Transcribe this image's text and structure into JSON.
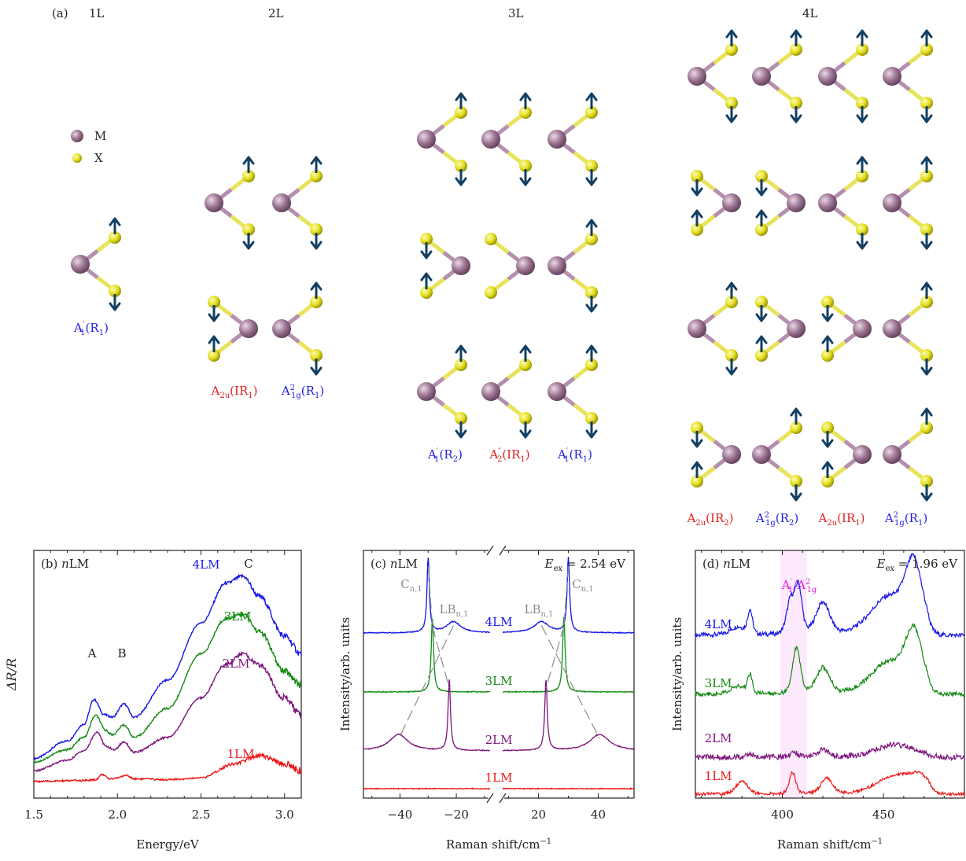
{
  "panel_a": {
    "label": "(a)",
    "layer_titles": [
      "1L",
      "2L",
      "3L",
      "4L"
    ],
    "legend": [
      {
        "symbol": "metal-atom",
        "label": "M"
      },
      {
        "symbol": "chalcogen-atom",
        "label": "X"
      }
    ],
    "mode_labels": {
      "1L": [
        {
          "main": "A",
          "sup": "′",
          "sub": "1",
          "rest": "(R",
          "rsub": "1",
          "end": ")",
          "color": "#1f1fe0"
        }
      ],
      "2L": [
        {
          "main": "A",
          "sup": "",
          "sub": "2u",
          "rest": "(IR",
          "rsub": "1",
          "end": ")",
          "color": "#e01f1f"
        },
        {
          "main": "A",
          "sup": "2",
          "sub": "1g",
          "rest": "(R",
          "rsub": "1",
          "end": ")",
          "color": "#1f1fe0"
        }
      ],
      "3L": [
        {
          "main": "A",
          "sup": "′",
          "sub": "1",
          "rest": "(R",
          "rsub": "2",
          "end": ")",
          "color": "#1f1fe0"
        },
        {
          "main": "A",
          "sup": "″",
          "sub": "2",
          "rest": "(IR",
          "rsub": "1",
          "end": ")",
          "color": "#e01f1f"
        },
        {
          "main": "A",
          "sup": "′",
          "sub": "1",
          "rest": "(R",
          "rsub": "1",
          "end": ")",
          "color": "#1f1fe0"
        }
      ],
      "4L": [
        {
          "main": "A",
          "sup": "",
          "sub": "2u",
          "rest": "(IR",
          "rsub": "2",
          "end": ")",
          "color": "#e01f1f"
        },
        {
          "main": "A",
          "sup": "2",
          "sub": "1g",
          "rest": "(R",
          "rsub": "2",
          "end": ")",
          "color": "#1f1fe0"
        },
        {
          "main": "A",
          "sup": "",
          "sub": "2u",
          "rest": "(IR",
          "rsub": "1",
          "end": ")",
          "color": "#e01f1f"
        },
        {
          "main": "A",
          "sup": "2",
          "sub": "1g",
          "rest": "(R",
          "rsub": "1",
          "end": ")",
          "color": "#1f1fe0"
        }
      ]
    },
    "colors": {
      "metal": "#9a7290",
      "chalcogen": "#e6e020",
      "arrow": "#123f63",
      "bond_metal": "#b48fb0",
      "bond_x": "#e8e35a"
    }
  },
  "chart_data": [
    {
      "type": "line",
      "panel": "(b)",
      "title": "nLM",
      "xlabel": "Energy/eV",
      "ylabel": "ΔR/R",
      "xlim": [
        1.5,
        3.1
      ],
      "xticks": [
        "1.5",
        "2.0",
        "2.5",
        "3.0"
      ],
      "yticks": false,
      "annotations": [
        "A",
        "B",
        "C"
      ],
      "series": [
        {
          "name": "4LM",
          "color": "#1515e8",
          "offset": 3,
          "x": [
            1.5,
            1.7,
            1.8,
            1.86,
            1.92,
            1.97,
            2.04,
            2.1,
            2.3,
            2.5,
            2.65,
            2.75,
            2.85,
            3.0,
            3.1
          ],
          "y": [
            0.36,
            0.56,
            0.75,
            1.03,
            0.86,
            0.83,
            0.98,
            0.83,
            1.25,
            1.9,
            2.35,
            2.43,
            2.2,
            1.75,
            1.55
          ]
        },
        {
          "name": "3LM",
          "color": "#138a13",
          "offset": 2,
          "x": [
            1.5,
            1.7,
            1.8,
            1.87,
            1.93,
            1.97,
            2.04,
            2.1,
            2.3,
            2.5,
            2.65,
            2.75,
            2.85,
            3.0,
            3.1
          ],
          "y": [
            0.32,
            0.46,
            0.6,
            0.85,
            0.68,
            0.63,
            0.74,
            0.6,
            0.93,
            1.55,
            1.95,
            2.0,
            1.8,
            1.35,
            1.2
          ]
        },
        {
          "name": "2LM",
          "color": "#7c147c",
          "offset": 1,
          "x": [
            1.5,
            1.7,
            1.8,
            1.88,
            1.93,
            1.98,
            2.04,
            2.1,
            2.3,
            2.5,
            2.65,
            2.75,
            2.85,
            3.0,
            3.1
          ],
          "y": [
            0.22,
            0.34,
            0.45,
            0.66,
            0.5,
            0.46,
            0.55,
            0.43,
            0.6,
            1.05,
            1.43,
            1.55,
            1.42,
            1.05,
            0.85
          ]
        },
        {
          "name": "1LM",
          "color": "#ee1515",
          "offset": 0,
          "x": [
            1.5,
            1.8,
            1.87,
            1.91,
            1.95,
            2.0,
            2.05,
            2.1,
            2.3,
            2.5,
            2.7,
            2.85,
            3.0,
            3.1
          ],
          "y": [
            0.1,
            0.11,
            0.12,
            0.18,
            0.13,
            0.14,
            0.17,
            0.13,
            0.12,
            0.14,
            0.3,
            0.4,
            0.3,
            0.22
          ]
        }
      ]
    },
    {
      "type": "line",
      "panel": "(c)",
      "title": "nLM",
      "xlabel": "Raman shift/cm",
      "xlabel_sup": "−1",
      "ylabel": "Intensity/arb. units",
      "excitation": {
        "label": "E",
        "sub": "ex",
        "value": "= 2.54 eV"
      },
      "xlim_left": [
        -53,
        -8
      ],
      "xlim_right": [
        8,
        52
      ],
      "xticks": [
        "−40",
        "−20",
        "20",
        "40"
      ],
      "annotations": [
        {
          "main": "C",
          "sub": "n,1",
          "color": "#8c8c8c"
        },
        {
          "main": "LB",
          "sub": "n,1",
          "color": "#8c8c8c"
        },
        {
          "main": "LB",
          "sub": "n,1",
          "color": "#8c8c8c"
        },
        {
          "main": "C",
          "sub": "n,1",
          "color": "#8c8c8c"
        }
      ],
      "series": [
        {
          "name": "4LM",
          "color": "#1515e8",
          "peaks": [
            {
              "x": -30,
              "h": 1.0,
              "w": 0.5
            },
            {
              "x": -21,
              "h": 0.15,
              "w": 3
            },
            {
              "x": 21,
              "h": 0.15,
              "w": 3
            },
            {
              "x": 30,
              "h": 1.0,
              "w": 0.5
            }
          ]
        },
        {
          "name": "3LM",
          "color": "#138a13",
          "peaks": [
            {
              "x": -28.5,
              "h": 1.0,
              "w": 0.5
            },
            {
              "x": 28.5,
              "h": 1.0,
              "w": 0.5
            }
          ]
        },
        {
          "name": "2LM",
          "color": "#7c147c",
          "peaks": [
            {
              "x": -40.5,
              "h": 0.22,
              "w": 4
            },
            {
              "x": -22.5,
              "h": 0.95,
              "w": 0.5
            },
            {
              "x": 22.5,
              "h": 0.95,
              "w": 0.5
            },
            {
              "x": 40.5,
              "h": 0.22,
              "w": 4
            }
          ]
        },
        {
          "name": "1LM",
          "color": "#ee1515",
          "peaks": []
        }
      ],
      "guides": [
        {
          "from": [
            -30,
            "4LM"
          ],
          "to": [
            -28.5,
            "3LM"
          ]
        },
        {
          "from": [
            -28.5,
            "3LM"
          ],
          "to": [
            -22.5,
            "2LM"
          ]
        },
        {
          "from": [
            -21,
            "4LM"
          ],
          "to": [
            -40.5,
            "2LM"
          ]
        },
        {
          "from": [
            30,
            "4LM"
          ],
          "to": [
            28.5,
            "3LM"
          ]
        },
        {
          "from": [
            28.5,
            "3LM"
          ],
          "to": [
            22.5,
            "2LM"
          ]
        },
        {
          "from": [
            21,
            "4LM"
          ],
          "to": [
            40.5,
            "2LM"
          ]
        }
      ]
    },
    {
      "type": "line",
      "panel": "(d)",
      "title": "nLM",
      "xlabel": "Raman shift/cm",
      "xlabel_sup": "−1",
      "ylabel": "Intensity/arb. units",
      "excitation": {
        "label": "E",
        "sub": "ex",
        "value": "= 1.96 eV"
      },
      "xlim": [
        357,
        490
      ],
      "xticks": [
        "400",
        "450"
      ],
      "highlight": {
        "from": 399,
        "to": 412,
        "label_parts": [
          "A",
          "′",
          "1",
          "/A",
          "2",
          "1g"
        ],
        "color": "#e21de2"
      },
      "series": [
        {
          "name": "4LM",
          "color": "#1515e8",
          "peaks": [
            {
              "x": 378,
              "h": 0.12,
              "w": 4
            },
            {
              "x": 384,
              "h": 0.35,
              "w": 1.2
            },
            {
              "x": 404,
              "h": 0.5,
              "w": 2
            },
            {
              "x": 408,
              "h": 0.7,
              "w": 1.8
            },
            {
              "x": 420,
              "h": 0.48,
              "w": 3.5
            },
            {
              "x": 452,
              "h": 0.55,
              "w": 9
            },
            {
              "x": 465,
              "h": 1.0,
              "w": 4.5
            }
          ]
        },
        {
          "name": "3LM",
          "color": "#138a13",
          "peaks": [
            {
              "x": 378,
              "h": 0.12,
              "w": 4
            },
            {
              "x": 384,
              "h": 0.3,
              "w": 1.2
            },
            {
              "x": 407,
              "h": 0.75,
              "w": 2
            },
            {
              "x": 420,
              "h": 0.42,
              "w": 3.5
            },
            {
              "x": 452,
              "h": 0.5,
              "w": 9
            },
            {
              "x": 465,
              "h": 0.95,
              "w": 4.5
            }
          ]
        },
        {
          "name": "2LM",
          "color": "#7c147c",
          "peaks": [
            {
              "x": 384,
              "h": 0.05,
              "w": 1.5
            },
            {
              "x": 406,
              "h": 0.05,
              "w": 2
            },
            {
              "x": 420,
              "h": 0.09,
              "w": 3
            },
            {
              "x": 456,
              "h": 0.16,
              "w": 10
            }
          ]
        },
        {
          "name": "1LM",
          "color": "#ee1515",
          "peaks": [
            {
              "x": 380,
              "h": 0.3,
              "w": 3
            },
            {
              "x": 405,
              "h": 0.5,
              "w": 1.6
            },
            {
              "x": 422,
              "h": 0.36,
              "w": 3
            },
            {
              "x": 455,
              "h": 0.4,
              "w": 9
            },
            {
              "x": 468,
              "h": 0.35,
              "w": 6
            }
          ]
        }
      ]
    }
  ]
}
